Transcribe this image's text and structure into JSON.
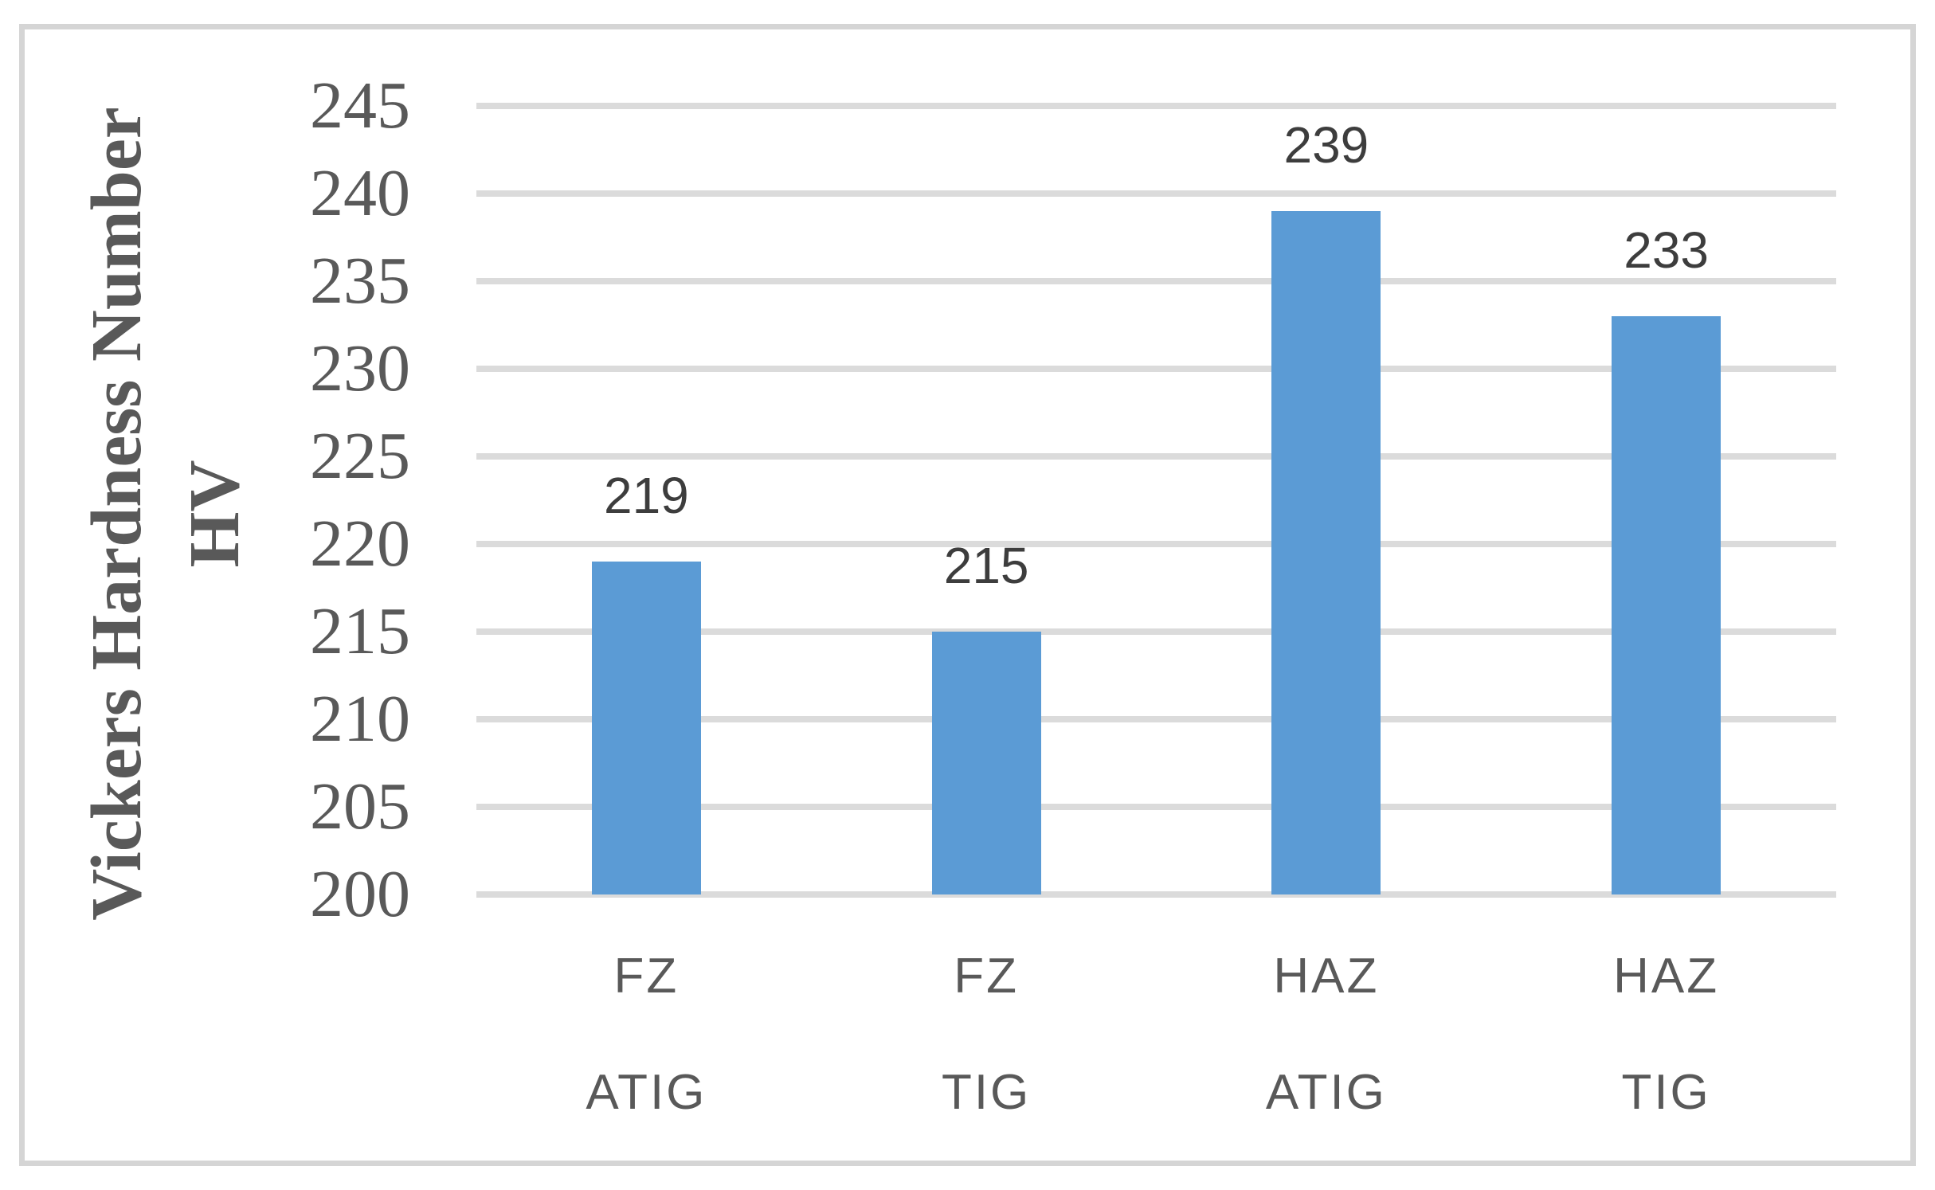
{
  "chart_data": {
    "type": "bar",
    "title": "",
    "ylabel_line1": "Vickers Hardness Number",
    "ylabel_line2": "HV",
    "ylim": [
      200,
      245
    ],
    "ytick_step": 5,
    "yticks": [
      245,
      240,
      235,
      230,
      225,
      220,
      215,
      210,
      205,
      200
    ],
    "categories": [
      {
        "zone": "FZ",
        "process": "ATIG"
      },
      {
        "zone": "FZ",
        "process": "TIG"
      },
      {
        "zone": "HAZ",
        "process": "ATIG"
      },
      {
        "zone": "HAZ",
        "process": "TIG"
      }
    ],
    "series": [
      {
        "name": "Vickers Hardness Number HV",
        "values": [
          219,
          215,
          239,
          233
        ]
      }
    ],
    "grid": true,
    "legend": "none",
    "colors": {
      "bar_fill": "#5B9BD5",
      "gridline": "#DBDBDB",
      "chart_border": "#D5D5D5",
      "tick_text": "#595959",
      "data_label_text": "#3D3D3D",
      "category_text": "#595959",
      "axis_title_text": "#595959",
      "background": "#FFFFFF"
    }
  }
}
